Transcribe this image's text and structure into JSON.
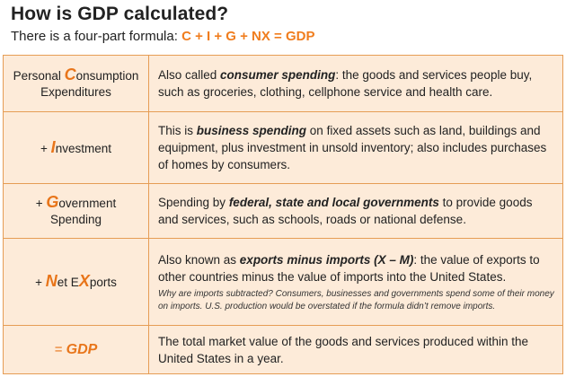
{
  "header": {
    "title": "How is GDP calculated?",
    "subtitle": "There is a four-part formula:",
    "formula": "C + I + G + NX = GDP"
  },
  "rows": [
    {
      "label_prefix": "Personal ",
      "label_big": "C",
      "label_rest": "onsumption",
      "label_line2": "Expenditures",
      "desc_pre": "Also called ",
      "desc_bold": "consumer spending",
      "desc_post": ": the goods and services people buy, such as groceries, clothing, cellphone service and health care."
    },
    {
      "label_prefix": "+ ",
      "label_big": "I",
      "label_rest": "nvestment",
      "desc_pre": "This is ",
      "desc_bold": "business spending",
      "desc_post": " on fixed assets such as land, buildings and equipment, plus investment in unsold inventory; also includes purchases of homes by consumers."
    },
    {
      "label_prefix": "+ ",
      "label_big": "G",
      "label_rest": "overnment",
      "label_line2": "Spending",
      "desc_pre": "Spending by ",
      "desc_bold": "federal, state and local governments",
      "desc_post": " to provide goods and services, such as schools, roads or national defense."
    },
    {
      "label_prefix": "+ ",
      "label_big": "N",
      "label_mid": "et E",
      "label_big2": "X",
      "label_rest": "ports",
      "desc_pre": "Also known as ",
      "desc_bold": "exports minus imports (X – M)",
      "desc_post": ": the value of exports to other countries minus the value of imports into the United States.",
      "note": "Why are imports subtracted? Consumers, businesses and governments spend some of their money on imports. U.S. production would be overstated if the formula didn’t remove imports."
    },
    {
      "label_prefix": "= ",
      "label_big": "GDP",
      "desc_pre": "The total market value of the goods and services produced within the United States in a year."
    }
  ],
  "colors": {
    "accent": "#f07d1e",
    "row_bg": "#fdebd9",
    "border": "#e69d55"
  }
}
